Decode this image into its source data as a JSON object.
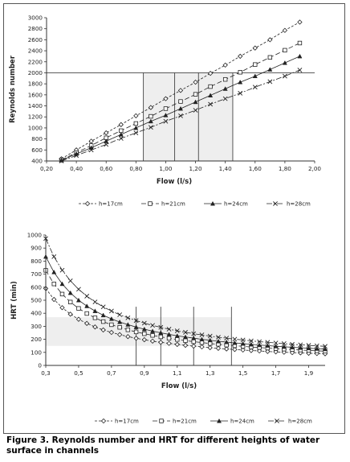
{
  "chart_data": [
    {
      "type": "line",
      "xlabel": "Flow (l/s)",
      "ylabel": "Reynolds number",
      "xlim": [
        0.2,
        2.0
      ],
      "ylim": [
        400,
        3000
      ],
      "xticks": [
        "0,20",
        "0,40",
        "0,60",
        "0,80",
        "1,00",
        "1,20",
        "1,40",
        "1,60",
        "1,80",
        "2,00"
      ],
      "yticks": [
        "400",
        "600",
        "800",
        "1000",
        "1200",
        "1400",
        "1600",
        "1800",
        "2000",
        "2200",
        "2400",
        "2600",
        "2800",
        "3000"
      ],
      "x": [
        0.3,
        0.4,
        0.5,
        0.6,
        0.7,
        0.8,
        0.9,
        1.0,
        1.1,
        1.2,
        1.3,
        1.4,
        1.5,
        1.6,
        1.7,
        1.8,
        1.9
      ],
      "series": [
        {
          "name": "h=17cm",
          "marker": "diamond-open",
          "values": [
            440,
            600,
            760,
            910,
            1060,
            1220,
            1370,
            1530,
            1680,
            1830,
            1990,
            2140,
            2300,
            2450,
            2600,
            2770,
            2920
          ]
        },
        {
          "name": "h=21cm",
          "marker": "square-open",
          "values": [
            420,
            550,
            680,
            820,
            950,
            1080,
            1210,
            1350,
            1480,
            1610,
            1750,
            1880,
            2010,
            2150,
            2280,
            2410,
            2540
          ]
        },
        {
          "name": "h=24cm",
          "marker": "triangle-filled",
          "values": [
            410,
            530,
            640,
            760,
            880,
            1000,
            1120,
            1230,
            1350,
            1470,
            1590,
            1710,
            1830,
            1940,
            2060,
            2180,
            2300
          ]
        },
        {
          "name": "h=28cm",
          "marker": "x",
          "values": [
            400,
            500,
            600,
            700,
            810,
            910,
            1010,
            1120,
            1220,
            1320,
            1430,
            1530,
            1630,
            1740,
            1840,
            1940,
            2050
          ]
        }
      ],
      "reference_hline": 2000,
      "reference_vlines": [
        0.85,
        1.06,
        1.22,
        1.45
      ],
      "shaded_region": {
        "x": [
          0.85,
          1.45
        ],
        "y": [
          400,
          2000
        ]
      },
      "grid": false,
      "legend_position": "bottom"
    },
    {
      "type": "line",
      "xlabel": "Flow (l/s)",
      "ylabel": "HRT (min)",
      "xlim": [
        0.3,
        2.0
      ],
      "ylim": [
        0,
        1000
      ],
      "xticks": [
        "0,3",
        "0,5",
        "0,7",
        "0,9",
        "1,1",
        "1,3",
        "1,5",
        "1,7",
        "1,9"
      ],
      "yticks": [
        "0",
        "100",
        "200",
        "300",
        "400",
        "500",
        "600",
        "700",
        "800",
        "900",
        "1000"
      ],
      "x": [
        0.3,
        0.35,
        0.4,
        0.45,
        0.5,
        0.55,
        0.6,
        0.65,
        0.7,
        0.75,
        0.8,
        0.85,
        0.9,
        0.95,
        1.0,
        1.05,
        1.1,
        1.15,
        1.2,
        1.25,
        1.3,
        1.35,
        1.4,
        1.45,
        1.5,
        1.55,
        1.6,
        1.65,
        1.7,
        1.75,
        1.8,
        1.85,
        1.9,
        1.95,
        2.0
      ],
      "series": [
        {
          "name": "h=17cm",
          "marker": "diamond-open",
          "values": [
            590,
            506,
            443,
            393,
            354,
            322,
            295,
            272,
            253,
            236,
            221,
            208,
            197,
            186,
            177,
            169,
            161,
            154,
            148,
            142,
            136,
            131,
            126,
            122,
            118,
            114,
            111,
            107,
            104,
            101,
            98,
            96,
            93,
            91,
            89
          ]
        },
        {
          "name": "h=21cm",
          "marker": "square-open",
          "values": [
            729,
            625,
            547,
            486,
            437,
            398,
            365,
            336,
            312,
            292,
            273,
            257,
            243,
            230,
            219,
            208,
            199,
            190,
            182,
            175,
            168,
            162,
            156,
            151,
            146,
            141,
            137,
            133,
            129,
            125,
            122,
            118,
            115,
            112,
            109
          ]
        },
        {
          "name": "h=24cm",
          "marker": "triangle-filled",
          "values": [
            834,
            715,
            625,
            556,
            500,
            455,
            417,
            385,
            357,
            333,
            313,
            294,
            278,
            263,
            250,
            238,
            227,
            218,
            209,
            200,
            193,
            185,
            179,
            173,
            167,
            161,
            156,
            152,
            147,
            143,
            139,
            135,
            132,
            128,
            125
          ]
        },
        {
          "name": "h=28cm",
          "marker": "x",
          "values": [
            973,
            834,
            730,
            649,
            584,
            531,
            487,
            449,
            417,
            389,
            365,
            344,
            324,
            307,
            292,
            278,
            265,
            254,
            243,
            234,
            225,
            216,
            209,
            201,
            195,
            188,
            182,
            177,
            172,
            167,
            162,
            158,
            154,
            150,
            146
          ]
        }
      ],
      "reference_vlines": [
        0.85,
        1.0,
        1.2,
        1.43
      ],
      "shaded_region": {
        "x": [
          0.3,
          1.43
        ],
        "y": [
          150,
          370
        ]
      },
      "grid": false,
      "legend_position": "bottom"
    }
  ],
  "caption": {
    "line1": "Figure 3. Reynolds number and HRT for different heights of water",
    "line2": "surface in channels"
  },
  "colors": {
    "axis": "#333333",
    "series": "#222222",
    "shade": "#eeeeee"
  }
}
